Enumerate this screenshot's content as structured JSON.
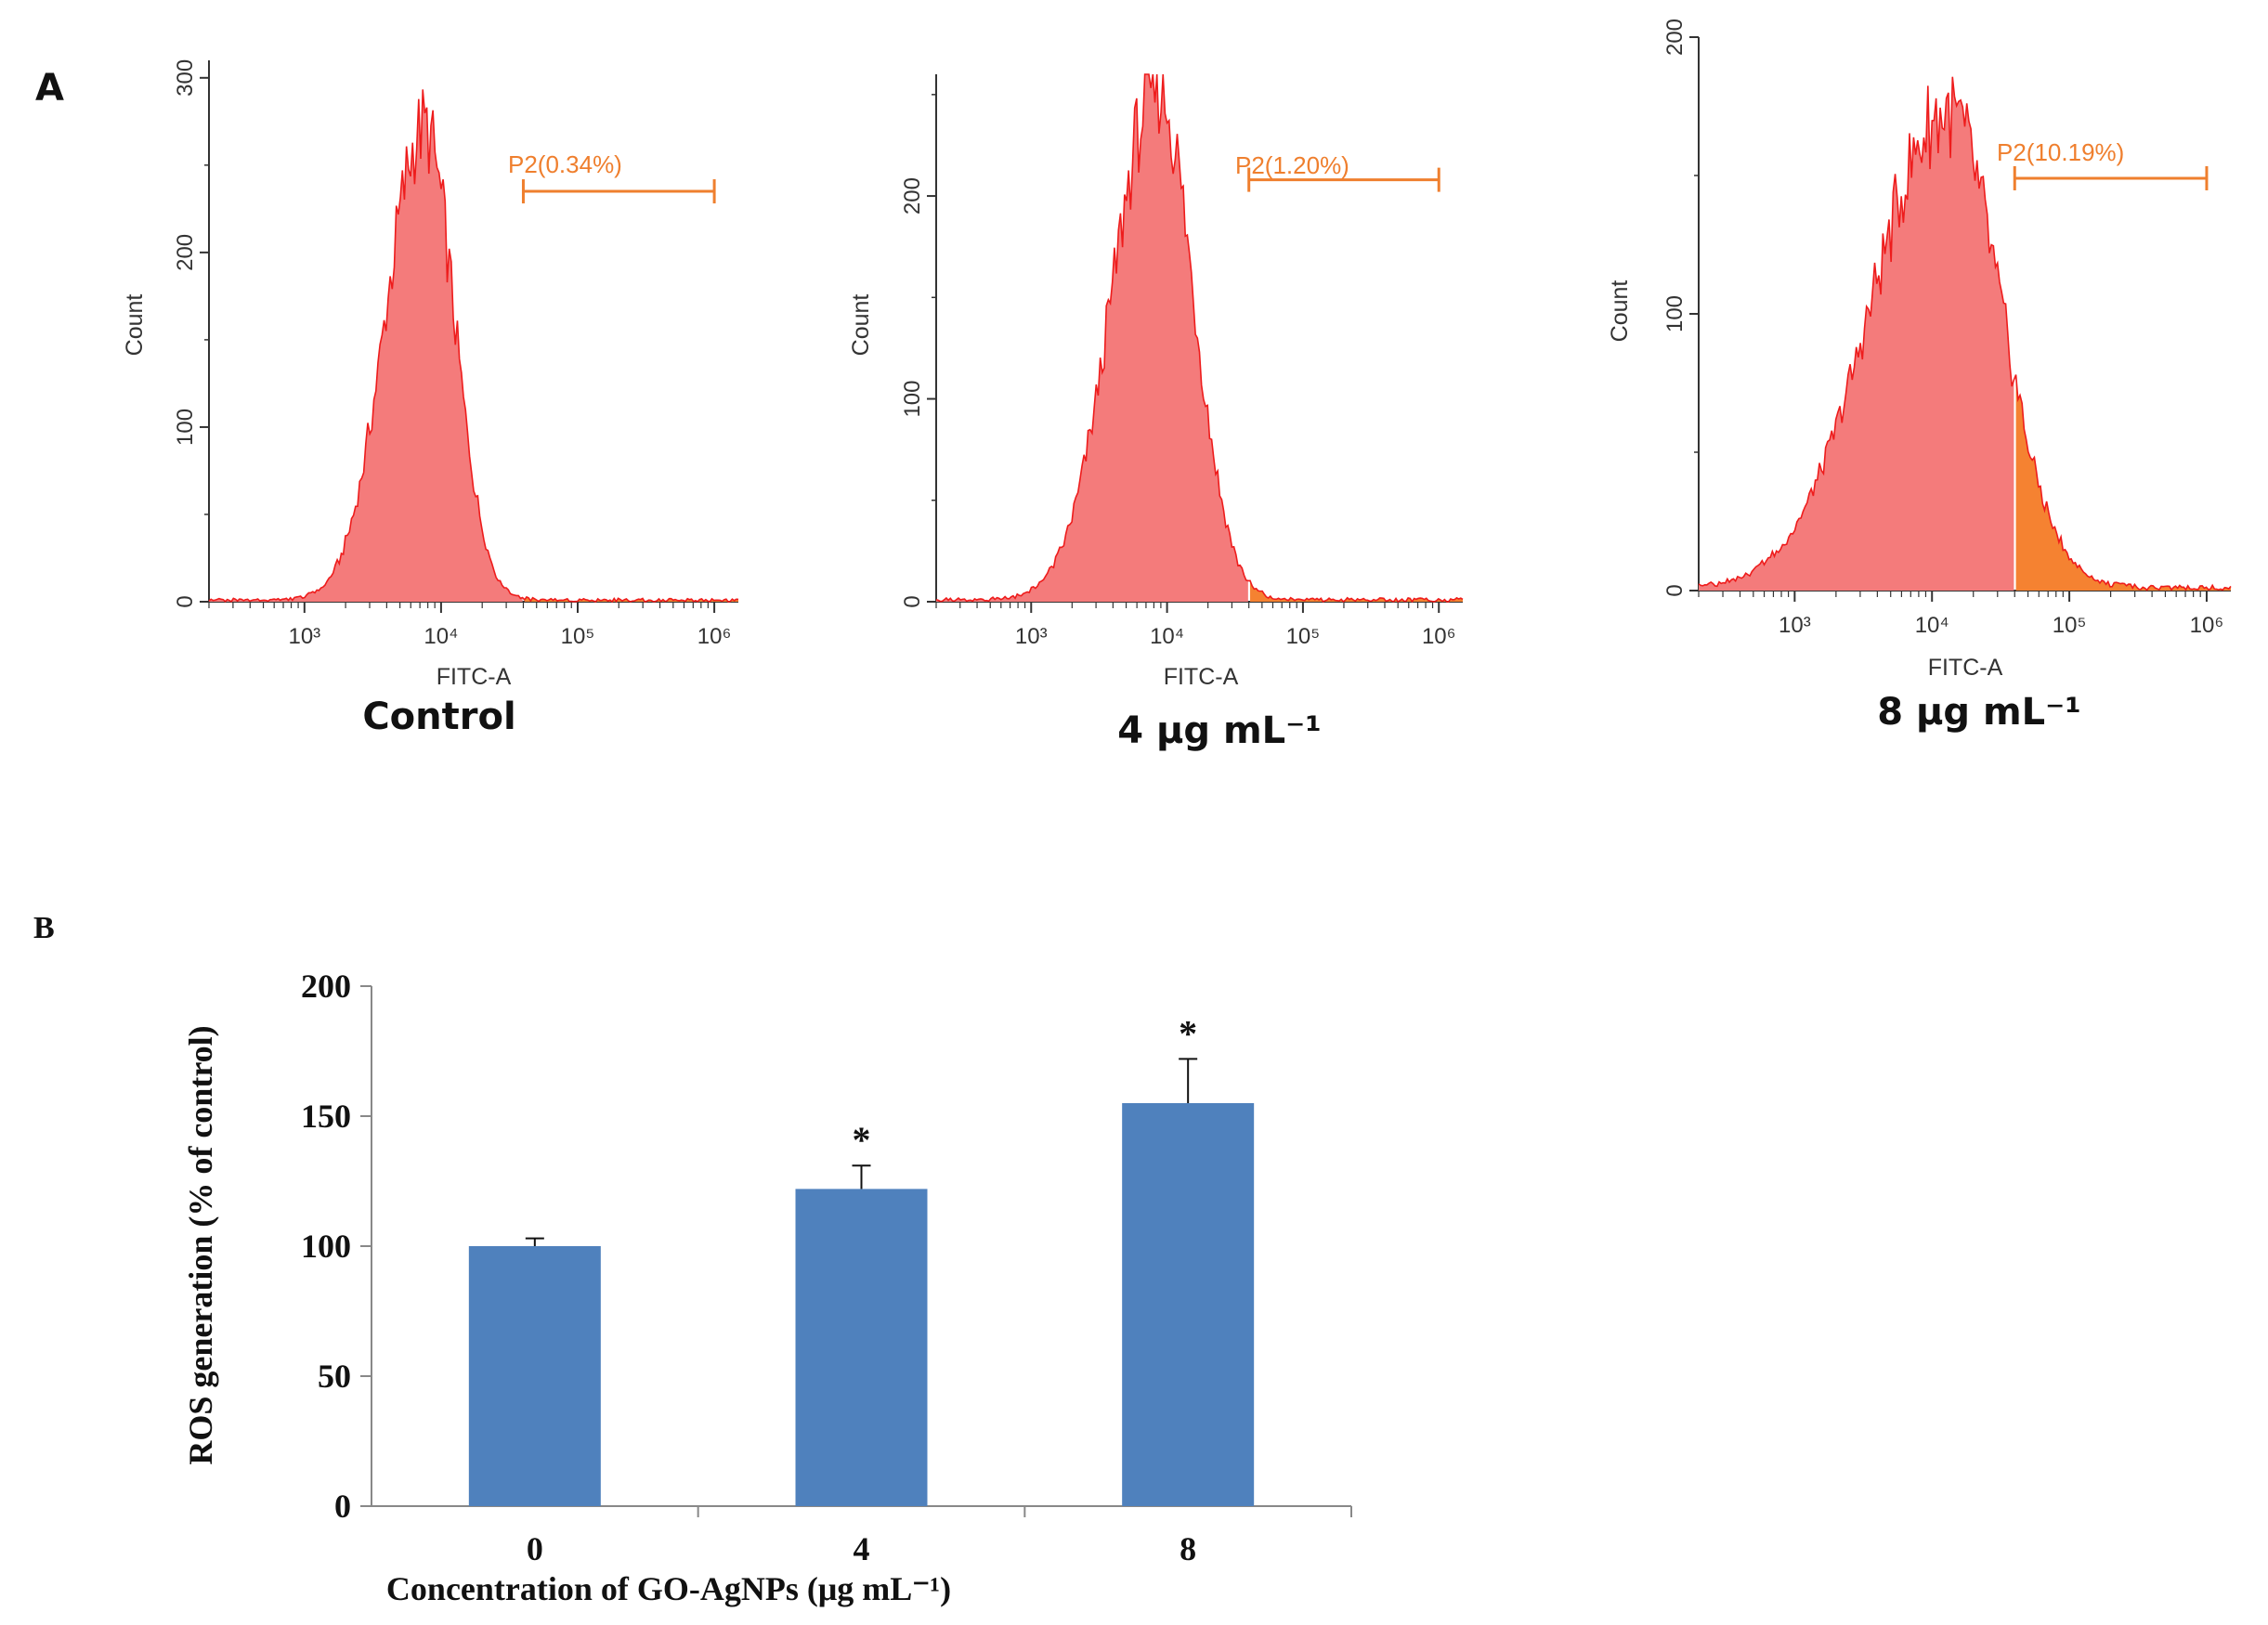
{
  "panel_a_letter": "A",
  "panel_b_letter": "B",
  "chart_data": [
    {
      "type": "area",
      "title": "Control",
      "xlabel": "FITC-A",
      "ylabel": "Count",
      "x_scale": "log",
      "xlim": [
        200,
        1500000
      ],
      "ylim": [
        0,
        310
      ],
      "yticks": [
        "0",
        "100",
        "200",
        "300"
      ],
      "ytick_values": [
        0,
        100,
        200,
        300
      ],
      "xticks": [
        "10³",
        "10⁴",
        "10⁵",
        "10⁶"
      ],
      "xtick_values": [
        1000,
        10000,
        100000,
        1000000
      ],
      "peak_x": 7500,
      "peak_y": 270,
      "sigma_left": 0.28,
      "sigma_right": 0.22,
      "gate": {
        "label": "P2(0.34%)",
        "x_start": 40000,
        "x_end": 1000000,
        "y": 235
      }
    },
    {
      "type": "area",
      "title": "4 μg mL⁻¹",
      "xlabel": "FITC-A",
      "ylabel": "Count",
      "x_scale": "log",
      "xlim": [
        200,
        1500000
      ],
      "ylim": [
        0,
        260
      ],
      "yticks": [
        "0",
        "100",
        "200"
      ],
      "ytick_values": [
        0,
        100,
        200
      ],
      "xticks": [
        "10³",
        "10⁴",
        "10⁵",
        "10⁶"
      ],
      "xtick_values": [
        1000,
        10000,
        100000,
        1000000
      ],
      "peak_x": 8500,
      "peak_y": 253,
      "sigma_left": 0.33,
      "sigma_right": 0.26,
      "gate": {
        "label": "P2(1.20%)",
        "x_start": 40000,
        "x_end": 1000000,
        "y": 208
      }
    },
    {
      "type": "area",
      "title": "8 μg mL⁻¹",
      "xlabel": "FITC-A",
      "ylabel": "Count",
      "x_scale": "log",
      "xlim": [
        200,
        1500000
      ],
      "ylim": [
        0,
        200
      ],
      "yticks": [
        "0",
        "100",
        "200"
      ],
      "ytick_values": [
        0,
        100,
        200
      ],
      "xticks": [
        "10³",
        "10⁴",
        "10⁵",
        "10⁶"
      ],
      "xtick_values": [
        1000,
        10000,
        100000,
        1000000
      ],
      "peak_x": 13000,
      "peak_y": 172,
      "sigma_left": 0.55,
      "sigma_right": 0.38,
      "gate": {
        "label": "P2(10.19%)",
        "x_start": 40000,
        "x_end": 1000000,
        "y": 149
      }
    },
    {
      "type": "bar",
      "categories": [
        "0",
        "4",
        "8"
      ],
      "values": [
        100,
        122,
        155
      ],
      "errors": [
        3,
        9,
        17
      ],
      "significance": [
        "",
        "*",
        "*"
      ],
      "ylabel": "ROS generation (% of control)",
      "xlabel": "Concentration of GO-AgNPs (μg mL⁻¹)",
      "ylim": [
        0,
        200
      ],
      "yticks": [
        "0",
        "50",
        "100",
        "150",
        "200"
      ],
      "ytick_values": [
        0,
        50,
        100,
        150,
        200
      ],
      "bar_color": "#4f81bd"
    }
  ],
  "colors": {
    "hist_fill": "#f47b7b",
    "hist_line": "#ee1c1c",
    "gate_fill": "#f58231",
    "gate_color": "#ef7f2e",
    "axis": "#333333"
  }
}
